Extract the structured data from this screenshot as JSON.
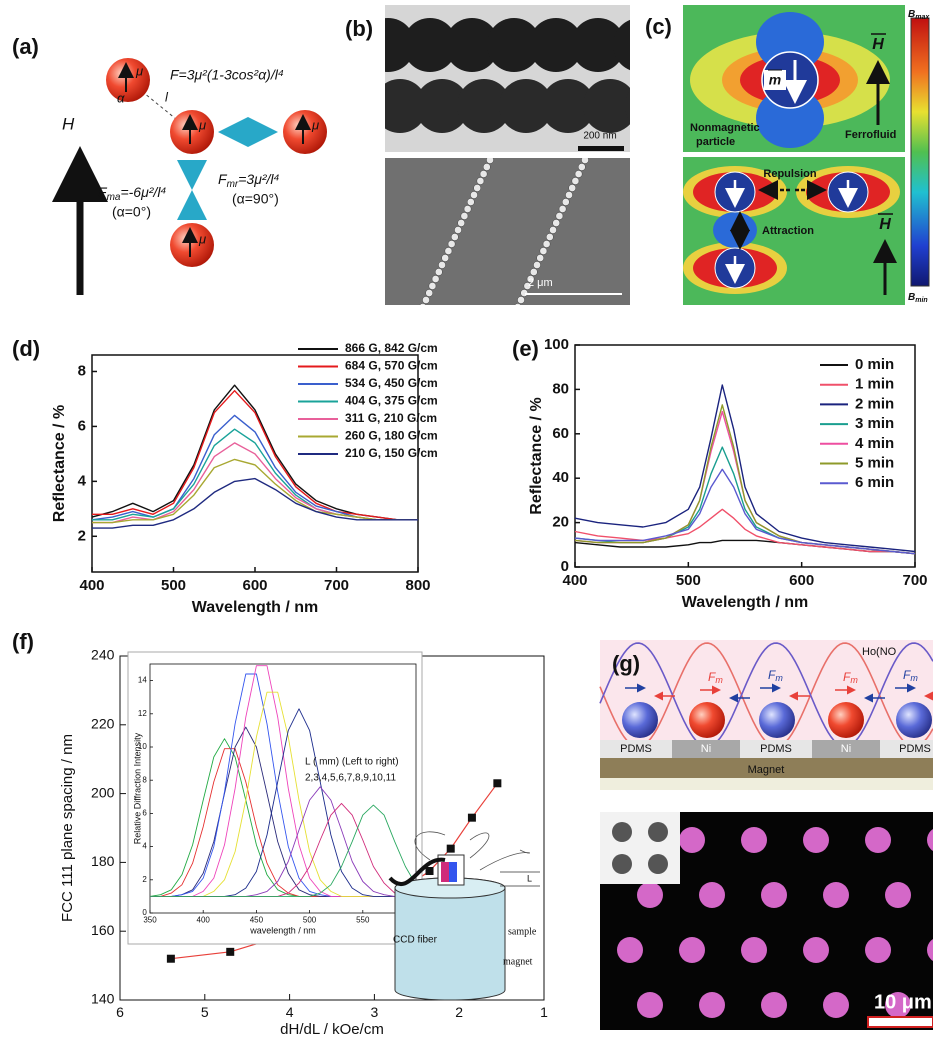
{
  "panels": {
    "a": {
      "label": "(a)",
      "mu": "μ",
      "force": "F=3μ²(1-3cos²α)/l⁴",
      "alpha": "α",
      "l": "l",
      "field": "H",
      "fma": {
        "f": "F",
        "sub": "ma",
        "rest": "=-6μ²/l⁴"
      },
      "fma_cond": "(α=0°)",
      "fmr": {
        "f": "F",
        "sub": "mr",
        "rest": "=3μ²/l⁴"
      },
      "fmr_cond": "(α=90°)"
    },
    "b": {
      "label": "(b)",
      "scale_tem": "200 nm",
      "scale_sem": "2 μm"
    },
    "c": {
      "label": "(c)",
      "moment": "m",
      "field": "H",
      "particle": [
        "Nonmagnetic",
        "particle"
      ],
      "fluid": "Ferrofluid",
      "repulsion": "Repulsion",
      "attraction": "Attraction",
      "bmax": {
        "b": "B",
        "sub": "max"
      },
      "bmin": {
        "b": "B",
        "sub": "min"
      }
    },
    "d": {
      "label": "(d)"
    },
    "e": {
      "label": "(e)"
    },
    "f": {
      "label": "(f)",
      "inset_legend": [
        "L ( mm) (Left to right)",
        "2,3,4,5,6,7,8,9,10,11"
      ],
      "schematic": {
        "fiber": "CCD fiber",
        "sample": "sample",
        "magnet": "magnet",
        "gap": "L"
      }
    },
    "g": {
      "label": "(g)",
      "solution": "Ho(NO",
      "force": {
        "f": "F",
        "sub": "m"
      },
      "layers": [
        "PDMS",
        "Ni",
        "PDMS",
        "Ni",
        "PDMS"
      ],
      "magnet": "Magnet",
      "scale": "10 μm"
    }
  },
  "chart_data": [
    {
      "type": "line",
      "x_label": "Wavelength / nm",
      "y_label": "Reflectance / %",
      "x": [
        400,
        425,
        450,
        475,
        500,
        525,
        550,
        575,
        600,
        625,
        650,
        675,
        700,
        725,
        750,
        775,
        800
      ],
      "xlim": [
        400,
        800
      ],
      "xticks": [
        400,
        500,
        600,
        700,
        800
      ],
      "ylim": [
        0.7,
        8.6
      ],
      "yticks": [
        2,
        4,
        6,
        8
      ],
      "series": [
        {
          "name": "866 G, 842 G/cm",
          "color": "#111111",
          "values": [
            2.7,
            2.9,
            3.2,
            2.9,
            3.3,
            4.6,
            6.6,
            7.5,
            6.6,
            5.0,
            3.9,
            3.3,
            3.0,
            2.8,
            2.7,
            2.6,
            2.6
          ]
        },
        {
          "name": "684 G, 570 G/cm",
          "color": "#e41a1c",
          "values": [
            2.8,
            2.8,
            3.0,
            2.8,
            3.2,
            4.5,
            6.5,
            7.3,
            6.5,
            4.9,
            3.8,
            3.2,
            2.9,
            2.8,
            2.7,
            2.6,
            2.6
          ]
        },
        {
          "name": "534 G, 450 G/cm",
          "color": "#3a5fcd",
          "values": [
            2.6,
            2.7,
            2.9,
            2.7,
            3.0,
            4.1,
            5.7,
            6.4,
            5.8,
            4.5,
            3.6,
            3.1,
            2.9,
            2.7,
            2.6,
            2.6,
            2.6
          ]
        },
        {
          "name": "404 G, 375 G/cm",
          "color": "#1aa39a",
          "values": [
            2.6,
            2.6,
            2.8,
            2.7,
            3.0,
            3.9,
            5.3,
            5.9,
            5.4,
            4.3,
            3.5,
            3.0,
            2.8,
            2.7,
            2.6,
            2.6,
            2.6
          ]
        },
        {
          "name": "311 G, 210 G/cm",
          "color": "#e8609a",
          "values": [
            2.5,
            2.5,
            2.7,
            2.6,
            2.9,
            3.7,
            4.9,
            5.4,
            5.0,
            4.1,
            3.4,
            3.0,
            2.8,
            2.7,
            2.6,
            2.6,
            2.6
          ]
        },
        {
          "name": "260 G, 180 G/cm",
          "color": "#a8a832",
          "values": [
            2.5,
            2.5,
            2.6,
            2.6,
            2.8,
            3.5,
            4.5,
            4.8,
            4.6,
            3.9,
            3.3,
            2.9,
            2.8,
            2.7,
            2.6,
            2.6,
            2.6
          ]
        },
        {
          "name": "210 G, 150 G/cm",
          "color": "#1f2a80",
          "values": [
            2.3,
            2.3,
            2.4,
            2.4,
            2.6,
            3.0,
            3.6,
            4.0,
            4.1,
            3.7,
            3.2,
            2.9,
            2.7,
            2.6,
            2.6,
            2.6,
            2.6
          ]
        }
      ]
    },
    {
      "type": "line",
      "x_label": "Wavelength / nm",
      "y_label": "Reflectance / %",
      "x": [
        400,
        420,
        440,
        460,
        480,
        500,
        510,
        520,
        530,
        540,
        550,
        560,
        580,
        600,
        620,
        640,
        660,
        680,
        700
      ],
      "xlim": [
        400,
        700
      ],
      "xticks": [
        400,
        500,
        600,
        700
      ],
      "ylim": [
        0,
        100
      ],
      "yticks": [
        0,
        20,
        40,
        60,
        80,
        100
      ],
      "series": [
        {
          "name": "0 min",
          "color": "#111111",
          "values": [
            11,
            10,
            9,
            9,
            9,
            10,
            11,
            11,
            12,
            12,
            12,
            12,
            11,
            10,
            9,
            8,
            7,
            7,
            6
          ]
        },
        {
          "name": "1 min",
          "color": "#f0506a",
          "values": [
            16,
            14,
            13,
            12,
            13,
            15,
            18,
            22,
            26,
            22,
            17,
            14,
            11,
            10,
            9,
            8,
            7,
            7,
            6
          ]
        },
        {
          "name": "2 min",
          "color": "#1a237e",
          "values": [
            22,
            20,
            19,
            18,
            20,
            26,
            36,
            58,
            82,
            62,
            36,
            24,
            16,
            13,
            11,
            10,
            9,
            8,
            7
          ]
        },
        {
          "name": "3 min",
          "color": "#1a9e8f",
          "values": [
            13,
            12,
            11,
            11,
            13,
            18,
            26,
            42,
            54,
            42,
            26,
            18,
            13,
            11,
            10,
            9,
            8,
            7,
            6
          ]
        },
        {
          "name": "4 min",
          "color": "#ee4fa0",
          "values": [
            12,
            11,
            11,
            11,
            13,
            19,
            30,
            52,
            70,
            52,
            30,
            20,
            14,
            11,
            10,
            9,
            8,
            7,
            6
          ]
        },
        {
          "name": "5 min",
          "color": "#8e9a2a",
          "values": [
            12,
            11,
            11,
            11,
            13,
            19,
            30,
            54,
            73,
            54,
            30,
            20,
            14,
            11,
            10,
            9,
            8,
            7,
            6
          ]
        },
        {
          "name": "6 min",
          "color": "#5a5ad0",
          "values": [
            13,
            12,
            12,
            12,
            14,
            17,
            24,
            36,
            44,
            36,
            24,
            17,
            13,
            11,
            10,
            9,
            8,
            7,
            6
          ]
        }
      ]
    },
    {
      "type": "scatter",
      "x_label": "dH/dL / kOe/cm",
      "y_label": "FCC 111 plane spacing / nm",
      "x": [
        5.4,
        4.7,
        4.1,
        3.6,
        3.1,
        2.7,
        2.35,
        2.1,
        1.85,
        1.55
      ],
      "values": [
        152,
        154,
        158.5,
        162.5,
        166,
        171.5,
        177.5,
        184,
        193,
        203
      ],
      "color": "#111111",
      "line_color": "#e8403a",
      "xlim": [
        6,
        1
      ],
      "xticks": [
        6,
        5,
        4,
        3,
        2,
        1
      ],
      "ylim": [
        140,
        240
      ],
      "yticks": [
        140,
        160,
        180,
        200,
        220,
        240
      ]
    },
    {
      "type": "line",
      "x_label": "wavelength / nm",
      "y_label": "Relative Diffraction Intensity",
      "x": [
        350,
        360,
        370,
        380,
        390,
        400,
        410,
        420,
        430,
        440,
        450,
        460,
        470,
        480,
        490,
        500,
        510,
        520,
        530,
        540,
        550,
        560,
        570,
        580,
        590,
        600
      ],
      "xlim": [
        350,
        600
      ],
      "xticks": [
        350,
        400,
        450,
        500,
        550,
        600
      ],
      "ylim": [
        0,
        15
      ],
      "yticks": [
        0,
        2,
        4,
        6,
        8,
        10,
        12,
        14
      ],
      "series": [
        {
          "color": "#22aa44",
          "values": [
            1.0,
            1.1,
            1.4,
            2.3,
            4.1,
            6.8,
            9.4,
            10.5,
            9.4,
            6.8,
            4.1,
            2.3,
            1.4,
            1.1,
            1.0,
            1.0,
            1.0,
            1.0,
            1.0,
            1.0,
            1.0,
            1.0,
            1.0,
            1.0,
            1.0,
            1.0
          ]
        },
        {
          "color": "#e53030",
          "values": [
            1.0,
            1.0,
            1.2,
            1.7,
            3.0,
            5.2,
            7.9,
            9.9,
            9.9,
            7.9,
            5.2,
            3.0,
            1.7,
            1.2,
            1.0,
            1.0,
            1.0,
            1.0,
            1.0,
            1.0,
            1.0,
            1.0,
            1.0,
            1.0,
            1.0,
            1.0
          ]
        },
        {
          "color": "#2b2b7a",
          "values": [
            1.0,
            1.0,
            1.0,
            1.1,
            1.4,
            2.4,
            4.3,
            7.2,
            10.0,
            11.2,
            10.0,
            7.2,
            4.3,
            2.4,
            1.4,
            1.1,
            1.0,
            1.0,
            1.0,
            1.0,
            1.0,
            1.0,
            1.0,
            1.0,
            1.0,
            1.0
          ]
        },
        {
          "color": "#3355ee",
          "values": [
            1.0,
            1.0,
            1.0,
            1.1,
            1.3,
            2.1,
            4.0,
            7.3,
            11.4,
            14.4,
            14.4,
            11.4,
            7.3,
            4.0,
            2.1,
            1.3,
            1.1,
            1.0,
            1.0,
            1.0,
            1.0,
            1.0,
            1.0,
            1.0,
            1.0,
            1.0
          ]
        },
        {
          "color": "#ee44bb",
          "values": [
            1.0,
            1.0,
            1.0,
            1.0,
            1.0,
            1.3,
            2.1,
            4.1,
            7.5,
            11.8,
            14.9,
            14.9,
            11.8,
            7.5,
            4.1,
            2.1,
            1.3,
            1.0,
            1.0,
            1.0,
            1.0,
            1.0,
            1.0,
            1.0,
            1.0,
            1.0
          ]
        },
        {
          "color": "#e6e033",
          "values": [
            1.0,
            1.0,
            1.0,
            1.0,
            1.0,
            1.0,
            1.3,
            2.0,
            3.7,
            6.8,
            10.6,
            13.3,
            13.3,
            10.6,
            6.8,
            3.7,
            2.0,
            1.3,
            1.0,
            1.0,
            1.0,
            1.0,
            1.0,
            1.0,
            1.0,
            1.0
          ]
        },
        {
          "color": "#1c2c8c",
          "values": [
            1.0,
            1.0,
            1.0,
            1.0,
            1.0,
            1.0,
            1.0,
            1.0,
            1.1,
            1.5,
            2.5,
            4.7,
            7.9,
            11.0,
            12.3,
            11.0,
            7.9,
            4.7,
            2.5,
            1.5,
            1.1,
            1.0,
            1.0,
            1.0,
            1.0,
            1.0
          ]
        },
        {
          "color": "#8a3ab9",
          "values": [
            1.0,
            1.0,
            1.0,
            1.0,
            1.0,
            1.0,
            1.0,
            1.0,
            1.0,
            1.0,
            1.1,
            1.3,
            1.9,
            3.1,
            5.0,
            6.8,
            7.6,
            6.8,
            5.0,
            3.1,
            1.9,
            1.3,
            1.1,
            1.0,
            1.0,
            1.0
          ]
        },
        {
          "color": "#d02a7a",
          "values": [
            1.0,
            1.0,
            1.0,
            1.0,
            1.0,
            1.0,
            1.0,
            1.0,
            1.0,
            1.0,
            1.0,
            1.0,
            1.0,
            1.2,
            1.8,
            2.8,
            4.4,
            5.9,
            6.6,
            5.9,
            4.4,
            2.8,
            1.8,
            1.2,
            1.1,
            1.0
          ]
        },
        {
          "color": "#2aa860",
          "values": [
            1.0,
            1.0,
            1.0,
            1.0,
            1.0,
            1.0,
            1.0,
            1.0,
            1.0,
            1.0,
            1.0,
            1.0,
            1.0,
            1.0,
            1.0,
            1.0,
            1.2,
            1.7,
            2.8,
            4.3,
            5.9,
            6.5,
            5.9,
            4.3,
            2.8,
            1.7
          ]
        }
      ]
    }
  ]
}
